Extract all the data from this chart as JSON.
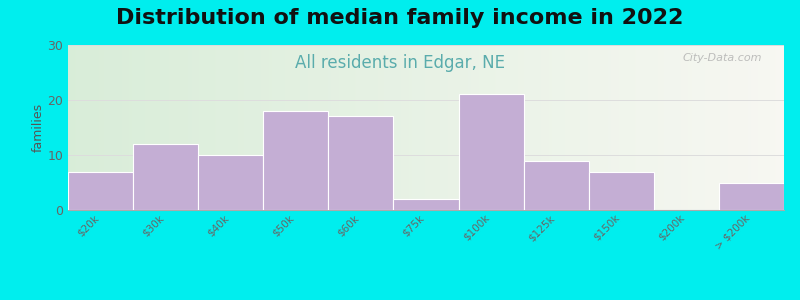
{
  "title": "Distribution of median family income in 2022",
  "subtitle": "All residents in Edgar, NE",
  "ylabel": "families",
  "categories": [
    "$20k",
    "$30k",
    "$40k",
    "$50k",
    "$60k",
    "$75k",
    "$100k",
    "$125k",
    "$150k",
    "$200k",
    "> $200k"
  ],
  "values": [
    7,
    12,
    10,
    18,
    17,
    2,
    21,
    9,
    7,
    0,
    5
  ],
  "bar_color": "#c4aed4",
  "bar_edgecolor": "#ffffff",
  "ylim": [
    0,
    30
  ],
  "yticks": [
    0,
    10,
    20,
    30
  ],
  "figure_bg": "#00eeee",
  "title_fontsize": 16,
  "subtitle_fontsize": 12,
  "subtitle_color": "#5aacac",
  "watermark": "City-Data.com",
  "grid_color": "#dddddd",
  "tick_label_color": "#666666"
}
